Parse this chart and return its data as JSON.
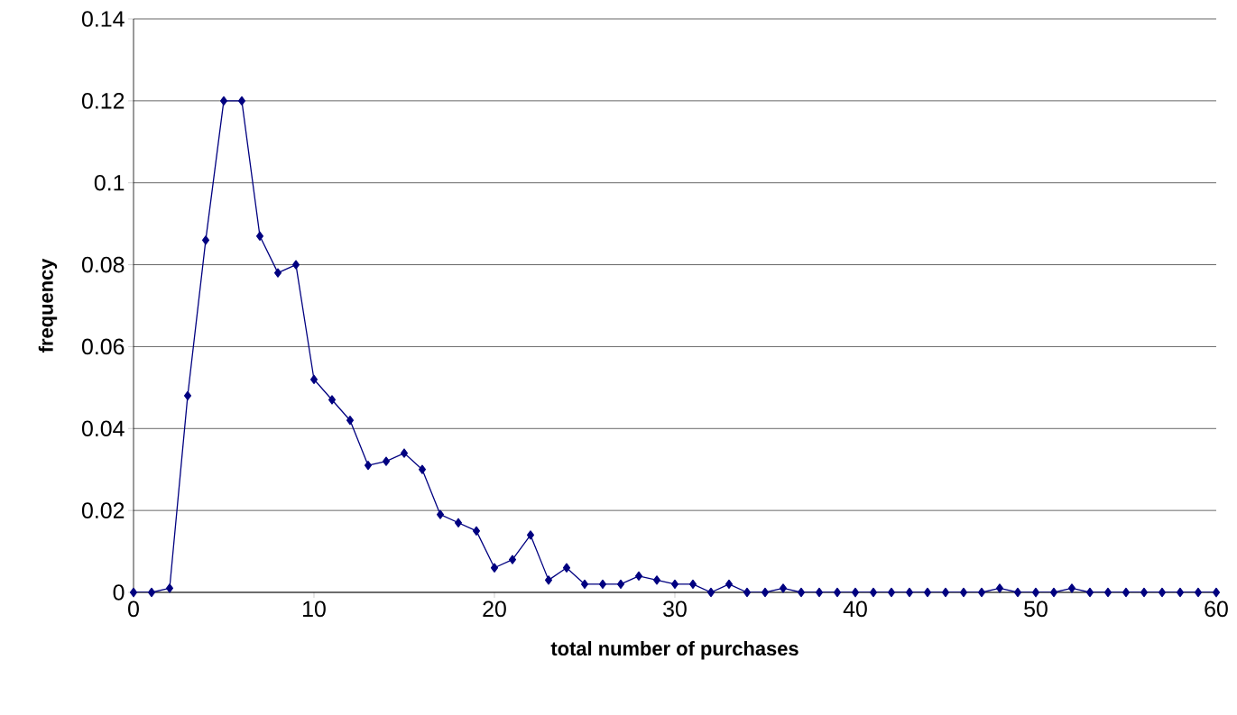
{
  "chart_data": {
    "type": "line",
    "xlabel": "total number of purchases",
    "ylabel": "frequency",
    "x": [
      0,
      1,
      2,
      3,
      4,
      5,
      6,
      7,
      8,
      9,
      10,
      11,
      12,
      13,
      14,
      15,
      16,
      17,
      18,
      19,
      20,
      21,
      22,
      23,
      24,
      25,
      26,
      27,
      28,
      29,
      30,
      31,
      32,
      33,
      34,
      35,
      36,
      37,
      38,
      39,
      40,
      41,
      42,
      43,
      44,
      45,
      46,
      47,
      48,
      49,
      50,
      51,
      52,
      53,
      54,
      55,
      56,
      57,
      58,
      59,
      60
    ],
    "series": [
      {
        "color": "#000080",
        "values": [
          0,
          0,
          0.001,
          0.048,
          0.086,
          0.12,
          0.12,
          0.087,
          0.078,
          0.08,
          0.052,
          0.047,
          0.042,
          0.031,
          0.032,
          0.034,
          0.03,
          0.019,
          0.017,
          0.015,
          0.006,
          0.008,
          0.014,
          0.003,
          0.006,
          0.002,
          0.002,
          0.002,
          0.004,
          0.003,
          0.002,
          0.002,
          0,
          0.002,
          0,
          0,
          0.001,
          0,
          0,
          0,
          0,
          0,
          0,
          0,
          0,
          0,
          0,
          0,
          0.001,
          0,
          0,
          0,
          0.001,
          0,
          0,
          0,
          0,
          0,
          0,
          0,
          0
        ]
      }
    ],
    "xlim": [
      0,
      60
    ],
    "xticks": [
      0,
      10,
      20,
      30,
      40,
      50,
      60
    ],
    "ylim": [
      0,
      0.14
    ],
    "yticks": [
      0,
      0.02,
      0.04,
      0.06,
      0.08,
      0.1,
      0.12,
      0.14
    ],
    "grid": "y",
    "marker": "diamond",
    "line_style": "solid"
  }
}
